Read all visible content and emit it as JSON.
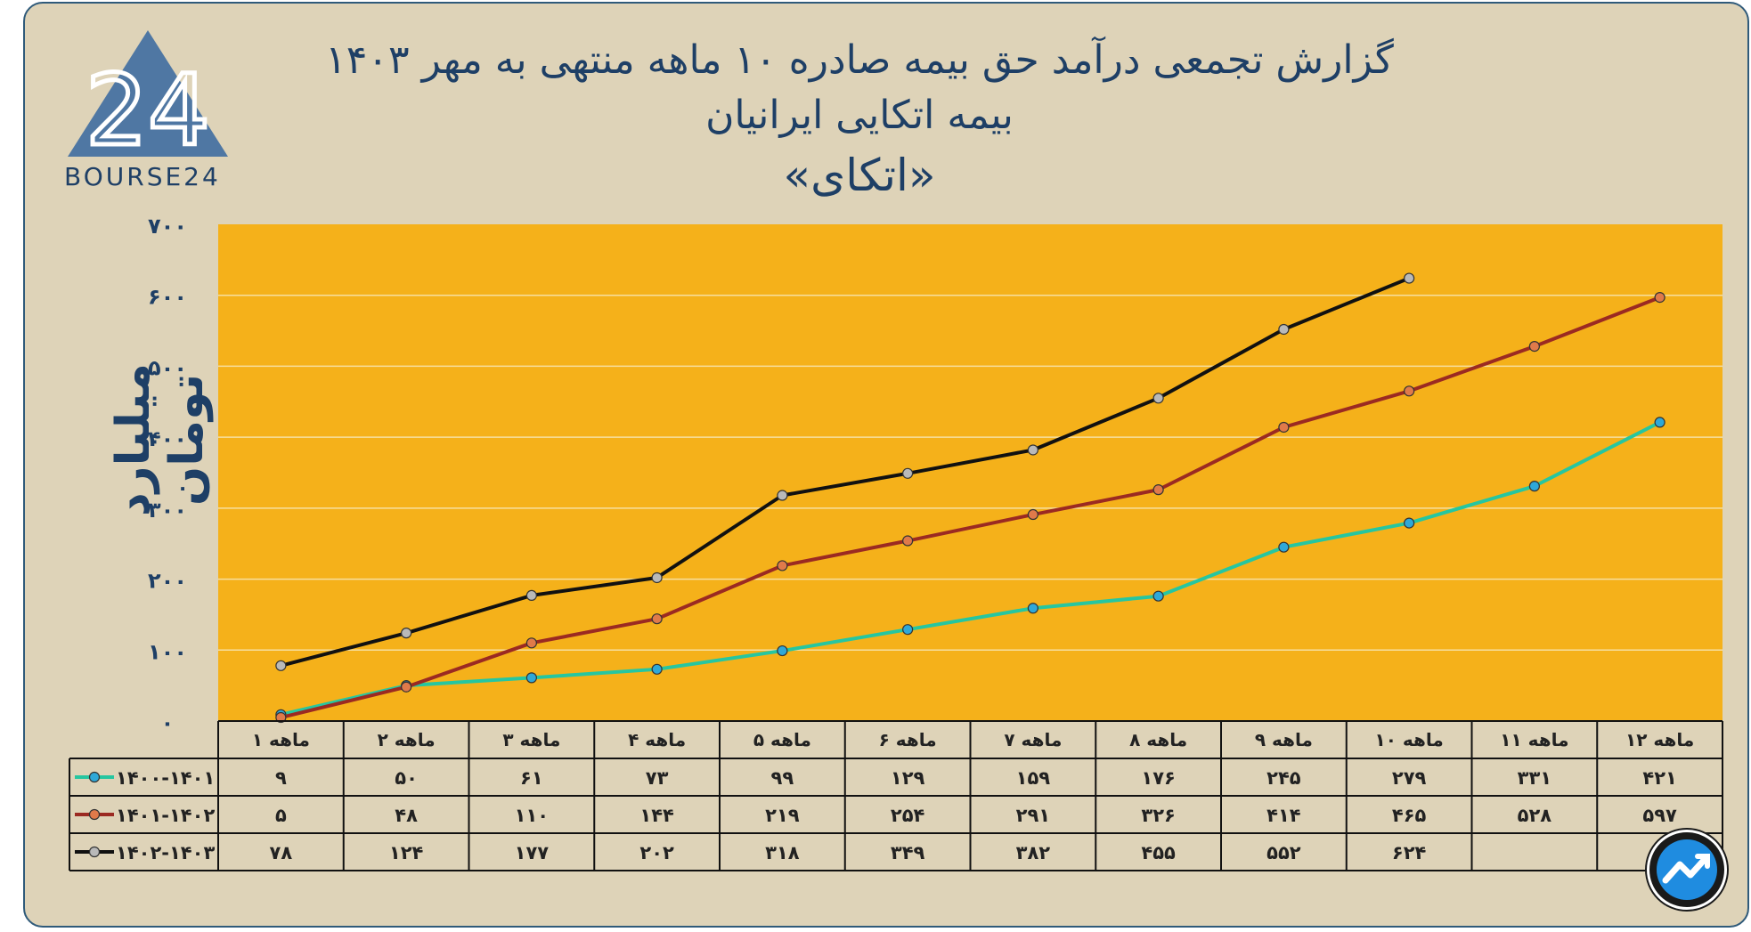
{
  "brand": {
    "logo_text": "BOURSE24",
    "logo_mark": "24"
  },
  "titles": {
    "line1": "گزارش تجمعی درآمد حق بیمه صادره ۱۰ ماهه منتهی به مهر ۱۴۰۳",
    "line2": "بیمه اتکایی ایرانیان",
    "line3": "«اتکای»"
  },
  "colors": {
    "background": "#ded3b8",
    "plot_area": "#f5b11a",
    "title_text": "#1e3f66",
    "series_1400_1401": "#26c6a0",
    "series_1401_1402": "#9b2a22",
    "series_1402_1403": "#111111"
  },
  "chart_data": {
    "type": "line",
    "ylabel": "میلیارد تومان",
    "ylim": [
      0,
      700
    ],
    "y_ticks": [
      "۰",
      "۱۰۰",
      "۲۰۰",
      "۳۰۰",
      "۴۰۰",
      "۵۰۰",
      "۶۰۰",
      "۷۰۰"
    ],
    "grid": true,
    "categories": [
      "۱ ماهه",
      "۲ ماهه",
      "۳ ماهه",
      "۴ ماهه",
      "۵ ماهه",
      "۶ ماهه",
      "ماهه ۷",
      "ماهه ۸",
      "۹ ماهه",
      "۱۰ ماهه",
      "۱۱ ماهه",
      "۱۲ ماهه"
    ],
    "series": [
      {
        "name": "۱۴۰۰-۱۴۰۱",
        "values": [
          9,
          50,
          61,
          73,
          99,
          129,
          159,
          176,
          245,
          279,
          331,
          421
        ],
        "labels": [
          "۹",
          "۵۰",
          "۶۱",
          "۷۳",
          "۹۹",
          "۱۲۹",
          "۱۵۹",
          "۱۷۶",
          "۲۴۵",
          "۲۷۹",
          "۳۳۱",
          "۴۲۱"
        ]
      },
      {
        "name": "۱۴۰۱-۱۴۰۲",
        "values": [
          5,
          48,
          110,
          144,
          219,
          254,
          291,
          326,
          414,
          465,
          528,
          597
        ],
        "labels": [
          "۵",
          "۴۸",
          "۱۱۰",
          "۱۴۴",
          "۲۱۹",
          "۲۵۴",
          "۲۹۱",
          "۳۲۶",
          "۴۱۴",
          "۴۶۵",
          "۵۲۸",
          "۵۹۷"
        ]
      },
      {
        "name": "۱۴۰۲-۱۴۰۳",
        "values": [
          78,
          124,
          177,
          202,
          318,
          349,
          382,
          455,
          552,
          624,
          null,
          null
        ],
        "labels": [
          "۷۸",
          "۱۲۴",
          "۱۷۷",
          "۲۰۲",
          "۳۱۸",
          "۳۴۹",
          "۳۸۲",
          "۴۵۵",
          "۵۵۲",
          "۶۲۴",
          "",
          ""
        ]
      }
    ]
  }
}
